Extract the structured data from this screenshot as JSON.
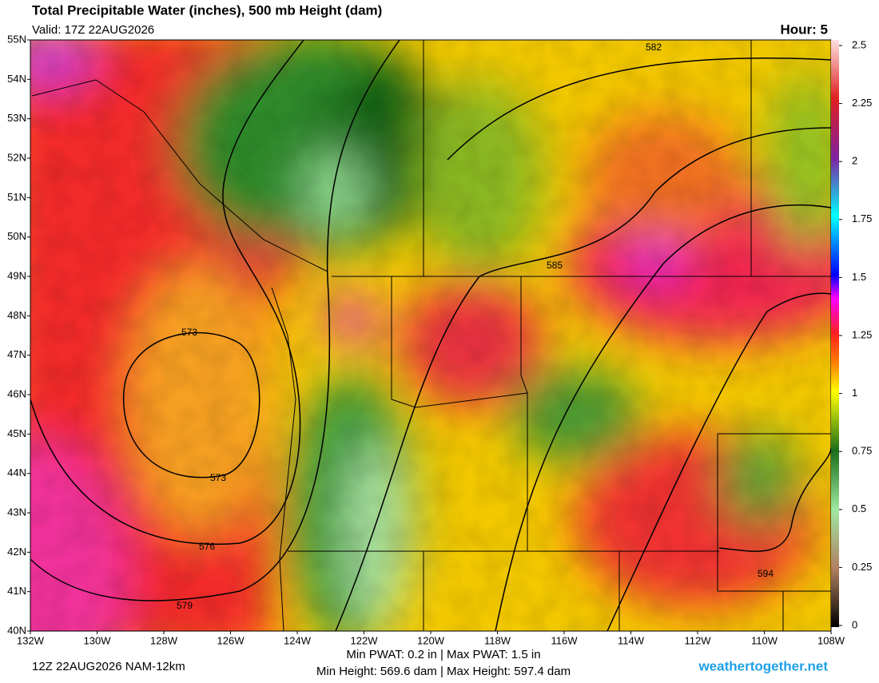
{
  "header": {
    "title": "Total Precipitable Water (inches), 500 mb Height (dam)",
    "valid": "Valid: 17Z 22AUG2026",
    "hour": "Hour: 5"
  },
  "map": {
    "lat_ticks": [
      {
        "value": 55,
        "label": "55N"
      },
      {
        "value": 54,
        "label": "54N"
      },
      {
        "value": 53,
        "label": "53N"
      },
      {
        "value": 52,
        "label": "52N"
      },
      {
        "value": 51,
        "label": "51N"
      },
      {
        "value": 50,
        "label": "50N"
      },
      {
        "value": 49,
        "label": "49N"
      },
      {
        "value": 48,
        "label": "48N"
      },
      {
        "value": 47,
        "label": "47N"
      },
      {
        "value": 46,
        "label": "46N"
      },
      {
        "value": 45,
        "label": "45N"
      },
      {
        "value": 44,
        "label": "44N"
      },
      {
        "value": 43,
        "label": "43N"
      },
      {
        "value": 42,
        "label": "42N"
      },
      {
        "value": 41,
        "label": "41N"
      },
      {
        "value": 40,
        "label": "40N"
      }
    ],
    "lon_ticks": [
      {
        "value": -132,
        "label": "132W"
      },
      {
        "value": -130,
        "label": "130W"
      },
      {
        "value": -128,
        "label": "128W"
      },
      {
        "value": -126,
        "label": "126W"
      },
      {
        "value": -124,
        "label": "124W"
      },
      {
        "value": -122,
        "label": "122W"
      },
      {
        "value": -120,
        "label": "120W"
      },
      {
        "value": -118,
        "label": "118W"
      },
      {
        "value": -116,
        "label": "116W"
      },
      {
        "value": -114,
        "label": "114W"
      },
      {
        "value": -112,
        "label": "112W"
      },
      {
        "value": -110,
        "label": "110W"
      },
      {
        "value": -108,
        "label": "108W"
      }
    ],
    "contour_labels": [
      582,
      585,
      573,
      573,
      576,
      579,
      594
    ],
    "colorbar_ticks": [
      2.5,
      2.25,
      2,
      1.75,
      1.5,
      1.25,
      1,
      0.75,
      0.5,
      0.25,
      0
    ]
  },
  "footer": {
    "run": "12Z 22AUG2026 NAM-12km",
    "pwat": "Min PWAT:   0.2 in | Max PWAT:   1.5 in",
    "height": "Min Height: 569.6 dam | Max Height: 597.4 dam",
    "site": "weathertogether.net"
  }
}
